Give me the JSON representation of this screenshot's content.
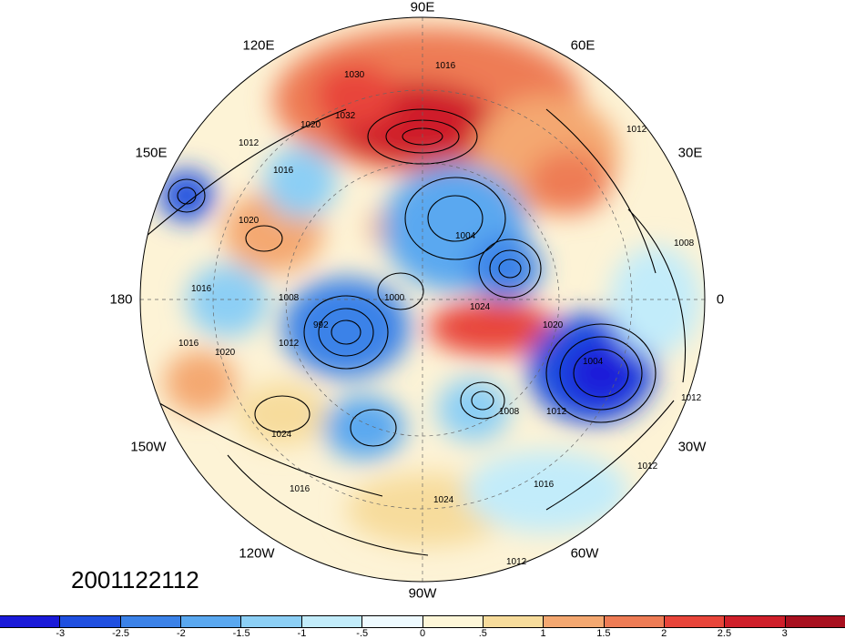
{
  "timestamp": "2001122112",
  "longitude_labels": {
    "lon_90e": "90E",
    "lon_120e": "120E",
    "lon_60e": "60E",
    "lon_150e": "150E",
    "lon_30e": "30E",
    "lon_180": "180",
    "lon_0": "0",
    "lon_150w": "150W",
    "lon_30w": "30W",
    "lon_120w": "120W",
    "lon_60w": "60W",
    "lon_90w": "90W"
  },
  "contour_labels": [
    "1016",
    "1030",
    "1032",
    "1020",
    "1012",
    "1016",
    "1020",
    "1004",
    "1000",
    "992",
    "1012",
    "1008",
    "1024",
    "1020",
    "1024",
    "1004",
    "1020",
    "1008",
    "1016",
    "1012",
    "1012",
    "1012",
    "1016",
    "1016",
    "1024",
    "1016",
    "1012",
    "1008",
    "1012"
  ],
  "colorbar": {
    "colors": [
      "#1a1ad9",
      "#1f4fe0",
      "#3b82e8",
      "#5aa8f0",
      "#8ccff5",
      "#c2ecfa",
      "#eefaff",
      "#fdf6d8",
      "#f7dc9c",
      "#f4a871",
      "#ee7c55",
      "#e8453a",
      "#cf1f2a",
      "#a8101f"
    ],
    "tick_labels": [
      "-3",
      "-2.5",
      "-2",
      "-1.5",
      "-1",
      "-.5",
      "0",
      ".5",
      "1",
      "1.5",
      "2",
      "2.5",
      "3"
    ]
  }
}
